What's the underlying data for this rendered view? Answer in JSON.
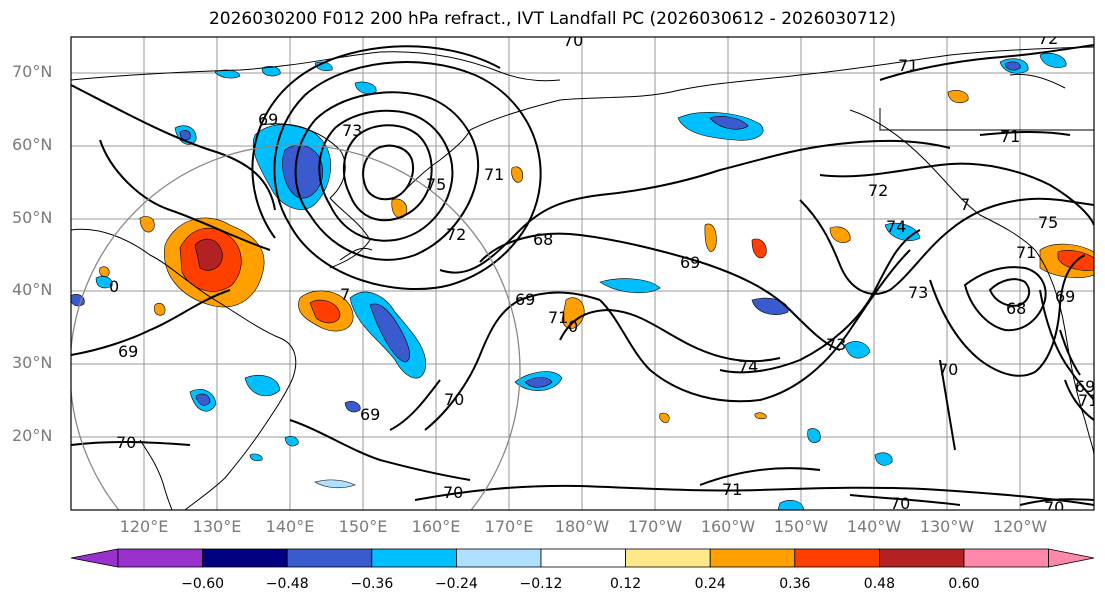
{
  "title": "2026030200 F012 200 hPa refract., IVT Landfall PC (2026030612 - 2026030712)",
  "latitude_labels": [
    "70°N",
    "60°N",
    "50°N",
    "40°N",
    "30°N",
    "20°N"
  ],
  "longitude_labels": [
    "120°E",
    "130°E",
    "140°E",
    "150°E",
    "160°E",
    "170°E",
    "180°W",
    "170°W",
    "160°W",
    "150°W",
    "140°W",
    "130°W",
    "120°W"
  ],
  "colorbar": {
    "colors": [
      "#9932cc",
      "#000080",
      "#3a5bcd",
      "#00bfff",
      "#b0e0ff",
      "#ffffff",
      "#ffe88a",
      "#ff9f00",
      "#ff3f00",
      "#b22222",
      "#ff88aa"
    ],
    "tick_labels": [
      "−0.60",
      "−0.48",
      "−0.36",
      "−0.24",
      "−0.12",
      "0.12",
      "0.24",
      "0.36",
      "0.48",
      "0.60"
    ]
  },
  "contour_labels": [
    "70",
    "71",
    "72",
    "69",
    "73",
    "75",
    "71",
    "72",
    "68",
    "69",
    "0",
    "69",
    "7",
    "71",
    "69",
    "70",
    "0",
    "69",
    "70",
    "71",
    "70",
    "70",
    "72",
    "7",
    "74",
    "75",
    "71",
    "73",
    "68",
    "69",
    "70",
    "73",
    "74",
    "71",
    "70",
    "69",
    "71"
  ]
}
